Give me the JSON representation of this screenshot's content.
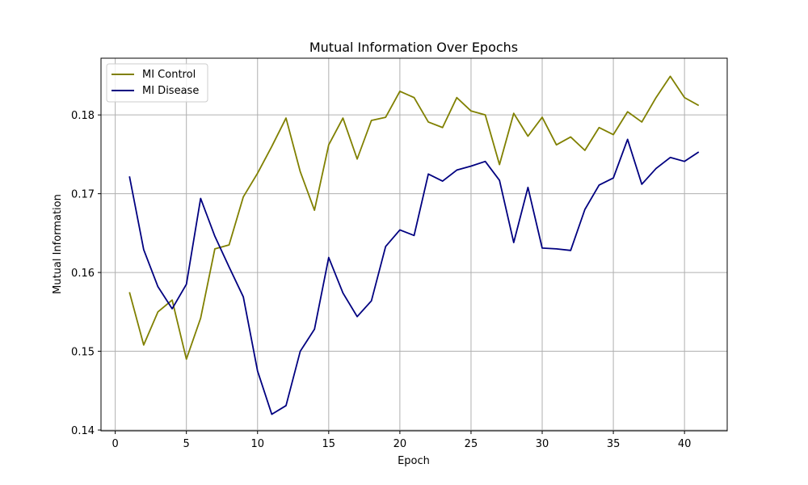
{
  "chart_data": {
    "type": "line",
    "title": "Mutual Information Over Epochs",
    "xlabel": "Epoch",
    "ylabel": "Mutual Information",
    "xlim": [
      -1,
      43
    ],
    "ylim": [
      0.1399,
      0.1872
    ],
    "xticks": [
      0,
      5,
      10,
      15,
      20,
      25,
      30,
      35,
      40
    ],
    "yticks": [
      0.14,
      0.15,
      0.16,
      0.17,
      0.18
    ],
    "ytick_labels": [
      "0.14",
      "0.15",
      "0.16",
      "0.17",
      "0.18"
    ],
    "grid": true,
    "legend_position": "upper-left",
    "x": [
      1,
      2,
      3,
      4,
      5,
      6,
      7,
      8,
      9,
      10,
      11,
      12,
      13,
      14,
      15,
      16,
      17,
      18,
      19,
      20,
      21,
      22,
      23,
      24,
      25,
      26,
      27,
      28,
      29,
      30,
      31,
      32,
      33,
      34,
      35,
      36,
      37,
      38,
      39,
      40,
      41
    ],
    "series": [
      {
        "name": "MI Control",
        "color": "#808000",
        "values": [
          0.1575,
          0.1508,
          0.155,
          0.1565,
          0.149,
          0.1542,
          0.163,
          0.1635,
          0.1696,
          0.1726,
          0.176,
          0.1796,
          0.1728,
          0.1679,
          0.1762,
          0.1796,
          0.1744,
          0.1793,
          0.1797,
          0.183,
          0.1822,
          0.1791,
          0.1784,
          0.1822,
          0.1805,
          0.18,
          0.1737,
          0.1802,
          0.1773,
          0.1797,
          0.1762,
          0.1772,
          0.1755,
          0.1784,
          0.1775,
          0.1804,
          0.1791,
          0.1822,
          0.1849,
          0.1822,
          0.1812
        ]
      },
      {
        "name": "MI Disease",
        "color": "#000080",
        "values": [
          0.1722,
          0.1629,
          0.1582,
          0.1554,
          0.1585,
          0.1694,
          0.1646,
          0.1607,
          0.1569,
          0.1475,
          0.142,
          0.1431,
          0.15,
          0.1528,
          0.1619,
          0.1574,
          0.1544,
          0.1564,
          0.1633,
          0.1654,
          0.1647,
          0.1725,
          0.1716,
          0.173,
          0.1735,
          0.1741,
          0.1717,
          0.1638,
          0.1708,
          0.1631,
          0.163,
          0.1628,
          0.168,
          0.1711,
          0.172,
          0.1769,
          0.1712,
          0.1732,
          0.1746,
          0.1741,
          0.1753
        ]
      }
    ]
  }
}
